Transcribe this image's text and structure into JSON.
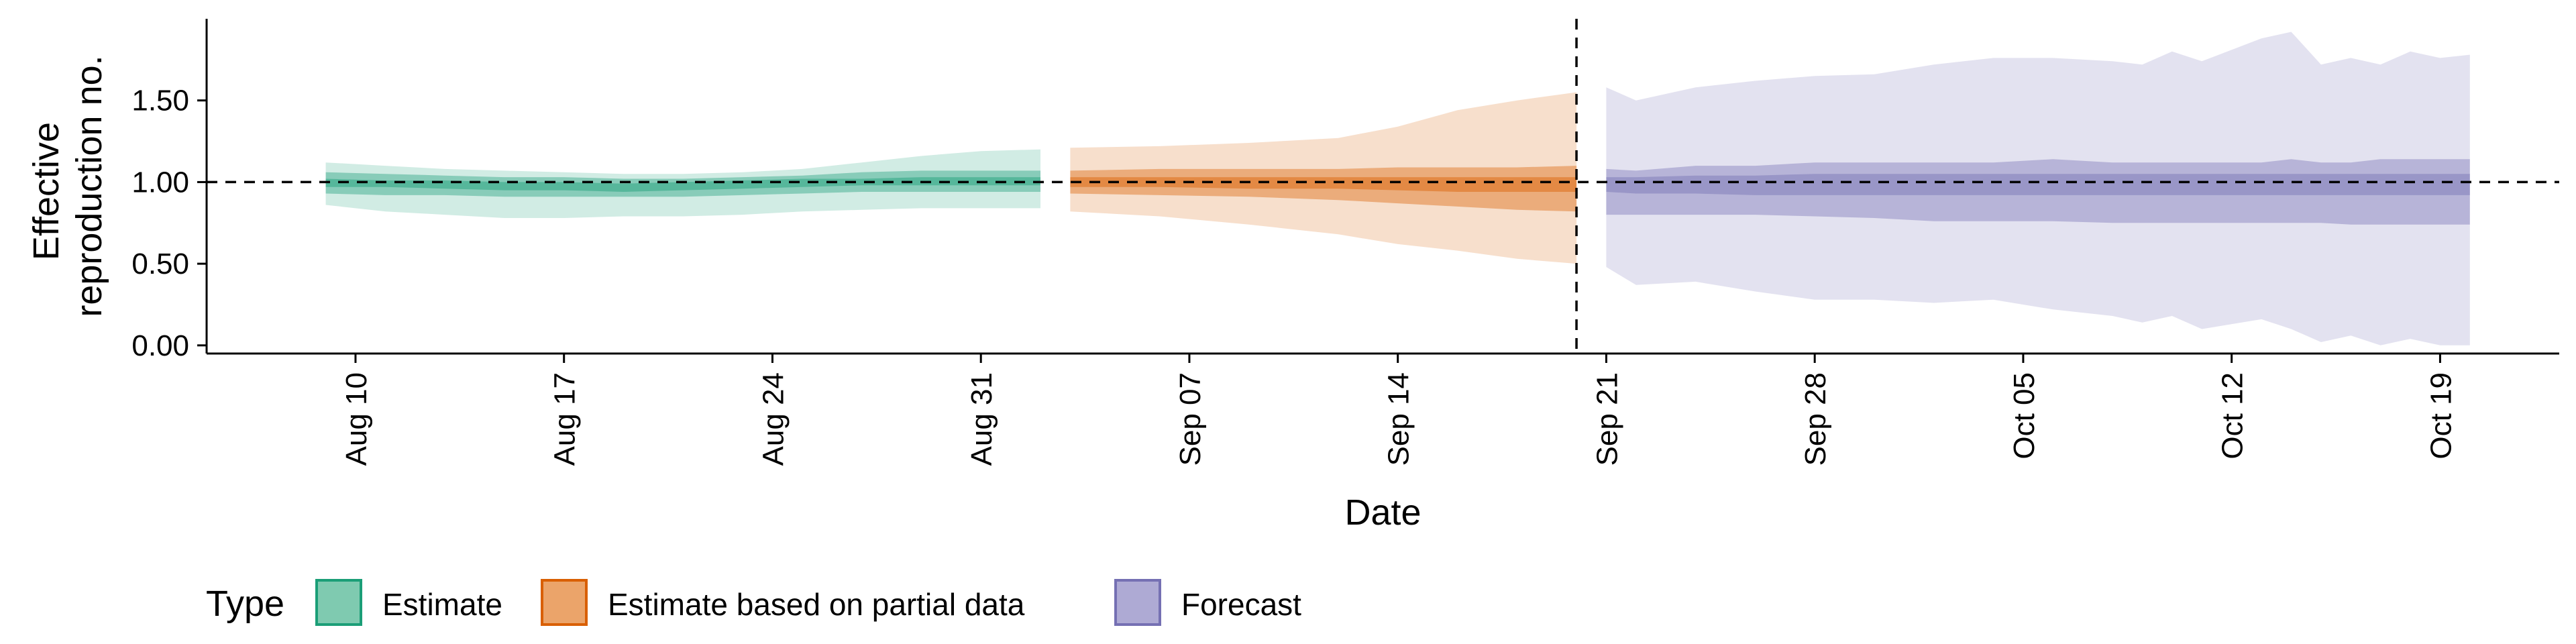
{
  "chart_data": {
    "type": "area",
    "title": "",
    "xlabel": "Date",
    "ylabel": [
      "Effective",
      "reproduction no."
    ],
    "ylim": [
      -0.05,
      2.0
    ],
    "xlim": [
      "2021-08-05",
      "2021-10-23"
    ],
    "y_ticks": [
      0.0,
      0.5,
      1.0,
      1.5
    ],
    "y_tick_labels": [
      "0.00",
      "0.50",
      "1.00",
      "1.50"
    ],
    "x_ticks": [
      "2021-08-10",
      "2021-08-17",
      "2021-08-24",
      "2021-08-31",
      "2021-09-07",
      "2021-09-14",
      "2021-09-21",
      "2021-09-28",
      "2021-10-05",
      "2021-10-12",
      "2021-10-19"
    ],
    "x_tick_labels": [
      "Aug 10",
      "Aug 17",
      "Aug 24",
      "Aug 31",
      "Sep 07",
      "Sep 14",
      "Sep 21",
      "Sep 28",
      "Oct 05",
      "Oct 12",
      "Oct 19"
    ],
    "reference_hline": 1.0,
    "reference_vline": "2021-09-20",
    "grid": false,
    "legend": {
      "title": "Type",
      "position": "bottom-left",
      "entries": [
        {
          "label": "Estimate",
          "fill": "#7fcab0",
          "stroke": "#1b9e77"
        },
        {
          "label": "Estimate based on partial data",
          "fill": "#eba46a",
          "stroke": "#d95f02"
        },
        {
          "label": "Forecast",
          "fill": "#aeaad4",
          "stroke": "#7570b3"
        }
      ]
    },
    "series": [
      {
        "type": "Estimate",
        "color": "#1b9e77",
        "points": [
          {
            "date": "2021-08-09",
            "outer": [
              0.86,
              1.12
            ],
            "mid": [
              0.93,
              1.06
            ],
            "inner": [
              0.97,
              1.02
            ]
          },
          {
            "date": "2021-08-11",
            "outer": [
              0.82,
              1.1
            ],
            "mid": [
              0.92,
              1.05
            ],
            "inner": [
              0.97,
              1.01
            ]
          },
          {
            "date": "2021-08-13",
            "outer": [
              0.8,
              1.08
            ],
            "mid": [
              0.92,
              1.04
            ],
            "inner": [
              0.96,
              1.01
            ]
          },
          {
            "date": "2021-08-15",
            "outer": [
              0.78,
              1.07
            ],
            "mid": [
              0.91,
              1.03
            ],
            "inner": [
              0.95,
              1.0
            ]
          },
          {
            "date": "2021-08-17",
            "outer": [
              0.78,
              1.06
            ],
            "mid": [
              0.91,
              1.03
            ],
            "inner": [
              0.95,
              1.0
            ]
          },
          {
            "date": "2021-08-19",
            "outer": [
              0.79,
              1.05
            ],
            "mid": [
              0.91,
              1.02
            ],
            "inner": [
              0.94,
              0.99
            ]
          },
          {
            "date": "2021-08-21",
            "outer": [
              0.79,
              1.05
            ],
            "mid": [
              0.91,
              1.02
            ],
            "inner": [
              0.95,
              1.0
            ]
          },
          {
            "date": "2021-08-23",
            "outer": [
              0.8,
              1.06
            ],
            "mid": [
              0.92,
              1.03
            ],
            "inner": [
              0.96,
              1.01
            ]
          },
          {
            "date": "2021-08-25",
            "outer": [
              0.82,
              1.08
            ],
            "mid": [
              0.93,
              1.04
            ],
            "inner": [
              0.97,
              1.02
            ]
          },
          {
            "date": "2021-08-27",
            "outer": [
              0.83,
              1.12
            ],
            "mid": [
              0.94,
              1.06
            ],
            "inner": [
              0.98,
              1.02
            ]
          },
          {
            "date": "2021-08-29",
            "outer": [
              0.84,
              1.16
            ],
            "mid": [
              0.94,
              1.07
            ],
            "inner": [
              0.98,
              1.03
            ]
          },
          {
            "date": "2021-08-31",
            "outer": [
              0.84,
              1.19
            ],
            "mid": [
              0.94,
              1.07
            ],
            "inner": [
              0.98,
              1.03
            ]
          },
          {
            "date": "2021-09-02",
            "outer": [
              0.84,
              1.2
            ],
            "mid": [
              0.94,
              1.07
            ],
            "inner": [
              0.98,
              1.03
            ]
          }
        ]
      },
      {
        "type": "Estimate based on partial data",
        "color": "#d95f02",
        "points": [
          {
            "date": "2021-09-03",
            "outer": [
              0.82,
              1.21
            ],
            "mid": [
              0.93,
              1.07
            ],
            "inner": [
              0.97,
              1.03
            ]
          },
          {
            "date": "2021-09-06",
            "outer": [
              0.79,
              1.22
            ],
            "mid": [
              0.92,
              1.08
            ],
            "inner": [
              0.97,
              1.03
            ]
          },
          {
            "date": "2021-09-09",
            "outer": [
              0.74,
              1.24
            ],
            "mid": [
              0.91,
              1.08
            ],
            "inner": [
              0.96,
              1.03
            ]
          },
          {
            "date": "2021-09-12",
            "outer": [
              0.68,
              1.27
            ],
            "mid": [
              0.89,
              1.08
            ],
            "inner": [
              0.96,
              1.03
            ]
          },
          {
            "date": "2021-09-14",
            "outer": [
              0.62,
              1.34
            ],
            "mid": [
              0.87,
              1.09
            ],
            "inner": [
              0.95,
              1.03
            ]
          },
          {
            "date": "2021-09-16",
            "outer": [
              0.58,
              1.44
            ],
            "mid": [
              0.85,
              1.09
            ],
            "inner": [
              0.94,
              1.03
            ]
          },
          {
            "date": "2021-09-18",
            "outer": [
              0.53,
              1.5
            ],
            "mid": [
              0.83,
              1.09
            ],
            "inner": [
              0.94,
              1.03
            ]
          },
          {
            "date": "2021-09-20",
            "outer": [
              0.5,
              1.55
            ],
            "mid": [
              0.82,
              1.1
            ],
            "inner": [
              0.94,
              1.03
            ]
          }
        ]
      },
      {
        "type": "Forecast",
        "color": "#7570b3",
        "points": [
          {
            "date": "2021-09-21",
            "outer": [
              0.48,
              1.58
            ],
            "mid": [
              0.8,
              1.08
            ],
            "inner": [
              0.94,
              1.03
            ]
          },
          {
            "date": "2021-09-22",
            "outer": [
              0.37,
              1.5
            ],
            "mid": [
              0.8,
              1.07
            ],
            "inner": [
              0.93,
              1.03
            ]
          },
          {
            "date": "2021-09-24",
            "outer": [
              0.39,
              1.58
            ],
            "mid": [
              0.8,
              1.1
            ],
            "inner": [
              0.93,
              1.04
            ]
          },
          {
            "date": "2021-09-26",
            "outer": [
              0.33,
              1.62
            ],
            "mid": [
              0.8,
              1.1
            ],
            "inner": [
              0.92,
              1.04
            ]
          },
          {
            "date": "2021-09-28",
            "outer": [
              0.28,
              1.65
            ],
            "mid": [
              0.79,
              1.12
            ],
            "inner": [
              0.92,
              1.05
            ]
          },
          {
            "date": "2021-09-30",
            "outer": [
              0.28,
              1.66
            ],
            "mid": [
              0.78,
              1.12
            ],
            "inner": [
              0.92,
              1.05
            ]
          },
          {
            "date": "2021-10-02",
            "outer": [
              0.26,
              1.72
            ],
            "mid": [
              0.76,
              1.12
            ],
            "inner": [
              0.92,
              1.05
            ]
          },
          {
            "date": "2021-10-04",
            "outer": [
              0.28,
              1.76
            ],
            "mid": [
              0.76,
              1.12
            ],
            "inner": [
              0.92,
              1.05
            ]
          },
          {
            "date": "2021-10-06",
            "outer": [
              0.22,
              1.76
            ],
            "mid": [
              0.76,
              1.14
            ],
            "inner": [
              0.92,
              1.05
            ]
          },
          {
            "date": "2021-10-08",
            "outer": [
              0.18,
              1.74
            ],
            "mid": [
              0.75,
              1.12
            ],
            "inner": [
              0.92,
              1.05
            ]
          },
          {
            "date": "2021-10-09",
            "outer": [
              0.14,
              1.72
            ],
            "mid": [
              0.75,
              1.12
            ],
            "inner": [
              0.92,
              1.05
            ]
          },
          {
            "date": "2021-10-10",
            "outer": [
              0.18,
              1.8
            ],
            "mid": [
              0.75,
              1.12
            ],
            "inner": [
              0.92,
              1.05
            ]
          },
          {
            "date": "2021-10-11",
            "outer": [
              0.1,
              1.74
            ],
            "mid": [
              0.75,
              1.12
            ],
            "inner": [
              0.92,
              1.05
            ]
          },
          {
            "date": "2021-10-13",
            "outer": [
              0.16,
              1.88
            ],
            "mid": [
              0.75,
              1.12
            ],
            "inner": [
              0.92,
              1.05
            ]
          },
          {
            "date": "2021-10-14",
            "outer": [
              0.1,
              1.92
            ],
            "mid": [
              0.75,
              1.14
            ],
            "inner": [
              0.92,
              1.05
            ]
          },
          {
            "date": "2021-10-15",
            "outer": [
              0.02,
              1.72
            ],
            "mid": [
              0.75,
              1.12
            ],
            "inner": [
              0.92,
              1.05
            ]
          },
          {
            "date": "2021-10-16",
            "outer": [
              0.06,
              1.76
            ],
            "mid": [
              0.74,
              1.12
            ],
            "inner": [
              0.92,
              1.05
            ]
          },
          {
            "date": "2021-10-17",
            "outer": [
              0.0,
              1.72
            ],
            "mid": [
              0.74,
              1.14
            ],
            "inner": [
              0.92,
              1.05
            ]
          },
          {
            "date": "2021-10-18",
            "outer": [
              0.04,
              1.8
            ],
            "mid": [
              0.74,
              1.14
            ],
            "inner": [
              0.92,
              1.05
            ]
          },
          {
            "date": "2021-10-19",
            "outer": [
              0.0,
              1.76
            ],
            "mid": [
              0.74,
              1.14
            ],
            "inner": [
              0.92,
              1.05
            ]
          },
          {
            "date": "2021-10-20",
            "outer": [
              0.0,
              1.78
            ],
            "mid": [
              0.74,
              1.14
            ],
            "inner": [
              0.92,
              1.05
            ]
          }
        ]
      }
    ]
  }
}
